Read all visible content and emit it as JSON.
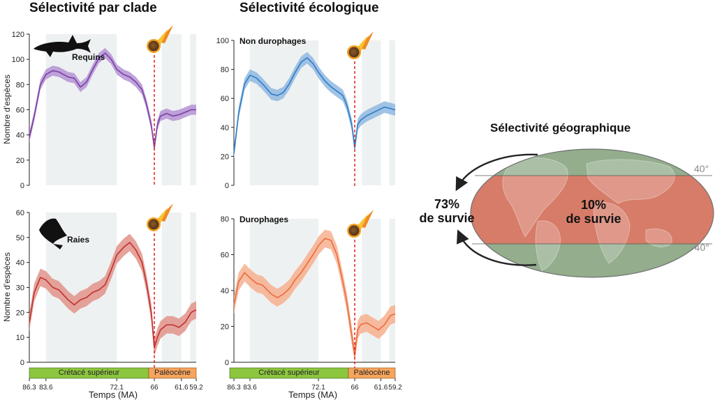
{
  "titles": {
    "clade": "Sélectivité par clade",
    "ecology": "Sélectivité écologique",
    "geography": "Sélectivité géographique"
  },
  "axis_ylabel": "Nombre d'espèces",
  "axis_xlabel": "Temps (MA)",
  "periods": {
    "cretaceous": "Crétacé supérieur",
    "paleocene": "Paléocène"
  },
  "panel_labels": {
    "sharks": "Requins",
    "rays": "Raies",
    "non_durophages": "Non durophages",
    "durophages": "Durophages"
  },
  "map": {
    "outer_survival": {
      "value": "73%",
      "text": "de survie"
    },
    "inner_survival": {
      "value": "10%",
      "text": "de survie"
    },
    "lat_north": "40°",
    "lat_south": "-40°"
  },
  "colors": {
    "sharks": "#7b3fa6",
    "sharks_band": "#b493d4",
    "rays": "#c0302f",
    "rays_band": "#e0938a",
    "non_durophages": "#2f7dc4",
    "non_durophages_band": "#8fb8e2",
    "durophages": "#ec6a3f",
    "durophages_band": "#f6b08e",
    "extinction_line": "#e02020",
    "cretaceous_bar": "#8cc63f",
    "paleocene_bar": "#f6a55e",
    "shaded_interval": "#eef1f1",
    "map_polar": "#93ad8d",
    "map_tropical": "#d67c68"
  },
  "chart_data": [
    {
      "id": "sharks",
      "type": "line",
      "title": "",
      "xlabel": "",
      "ylabel": "Nombre d'espèces",
      "xlim": [
        86.3,
        59.2
      ],
      "ylim": [
        0,
        120
      ],
      "yticks": [
        0,
        20,
        40,
        60,
        80,
        100,
        120
      ],
      "xticks": [
        86.3,
        83.6,
        72.1,
        66,
        61.6,
        59.2
      ],
      "extinction_x": 66,
      "series": [
        {
          "x": [
            86.3,
            85.5,
            84.5,
            83.6,
            82.5,
            81.5,
            80,
            79,
            78,
            77,
            76,
            75,
            74,
            73,
            72.1,
            71,
            70,
            69,
            68,
            67.3,
            66.5,
            66,
            65.5,
            65,
            64,
            63,
            62,
            61,
            60,
            59.2
          ],
          "y": [
            38,
            55,
            80,
            88,
            91,
            90,
            86,
            85,
            78,
            82,
            92,
            101,
            105,
            100,
            92,
            88,
            86,
            82,
            76,
            65,
            48,
            30,
            48,
            55,
            57,
            55,
            56,
            58,
            60,
            60
          ],
          "band": 4
        }
      ]
    },
    {
      "id": "rays",
      "type": "line",
      "title": "",
      "xlabel": "",
      "ylabel": "Nombre d'espèces",
      "xlim": [
        86.3,
        59.2
      ],
      "ylim": [
        0,
        60
      ],
      "yticks": [
        0,
        10,
        20,
        30,
        40,
        50,
        60
      ],
      "xticks": [
        86.3,
        83.6,
        72.1,
        66,
        61.6,
        59.2
      ],
      "extinction_x": 66,
      "series": [
        {
          "x": [
            86.3,
            85.5,
            84.5,
            83.6,
            82.5,
            81.5,
            80,
            79,
            78,
            77,
            76,
            75,
            74,
            73,
            72.1,
            71,
            70,
            69,
            68,
            67.3,
            66.5,
            66,
            65.5,
            65,
            64,
            63,
            62,
            61,
            60,
            59.2
          ],
          "y": [
            16,
            28,
            34,
            33,
            30,
            29,
            25,
            23,
            25,
            26,
            28,
            29,
            31,
            37,
            43,
            46,
            48,
            45,
            40,
            32,
            20,
            6,
            10,
            13,
            15,
            15,
            14,
            16,
            20,
            21
          ],
          "band": 3.5
        }
      ]
    },
    {
      "id": "non_durophages",
      "type": "line",
      "title": "",
      "xlabel": "",
      "ylabel": "",
      "xlim": [
        86.3,
        59.2
      ],
      "ylim": [
        0,
        100
      ],
      "yticks": [
        0,
        20,
        40,
        60,
        80,
        100
      ],
      "xticks": [
        86.3,
        83.6,
        72.1,
        66,
        61.6,
        59.2
      ],
      "extinction_x": 66,
      "series": [
        {
          "x": [
            86.3,
            85.5,
            84.5,
            83.6,
            82.5,
            81.5,
            80,
            79,
            78,
            77,
            76,
            75,
            74,
            73,
            72.1,
            71,
            70,
            69,
            68,
            67.3,
            66.5,
            66,
            65.5,
            65,
            64,
            63,
            62,
            61,
            60,
            59.2
          ],
          "y": [
            22,
            50,
            70,
            76,
            74,
            70,
            63,
            62,
            64,
            70,
            78,
            85,
            88,
            84,
            78,
            72,
            68,
            65,
            62,
            55,
            42,
            26,
            42,
            45,
            48,
            50,
            52,
            54,
            53,
            52
          ],
          "band": 4
        }
      ]
    },
    {
      "id": "durophages",
      "type": "line",
      "title": "",
      "xlabel": "",
      "ylabel": "",
      "xlim": [
        86.3,
        59.2
      ],
      "ylim": [
        0,
        80
      ],
      "yticks": [
        0,
        20,
        40,
        60,
        80
      ],
      "xticks": [
        86.3,
        83.6,
        72.1,
        66,
        61.6,
        59.2
      ],
      "extinction_x": 66,
      "series": [
        {
          "x": [
            86.3,
            85.5,
            84.5,
            83.6,
            82.5,
            81.5,
            80,
            79,
            78,
            77,
            76,
            75,
            74,
            73,
            72.1,
            71,
            70,
            69,
            68,
            67.3,
            66.5,
            66,
            65.5,
            65,
            64,
            63,
            62,
            61,
            60,
            59.2
          ],
          "y": [
            32,
            45,
            50,
            47,
            44,
            43,
            38,
            36,
            38,
            41,
            46,
            50,
            55,
            60,
            65,
            69,
            68,
            60,
            45,
            33,
            15,
            4,
            18,
            21,
            22,
            20,
            18,
            21,
            26,
            27
          ],
          "band": 5
        }
      ]
    }
  ]
}
